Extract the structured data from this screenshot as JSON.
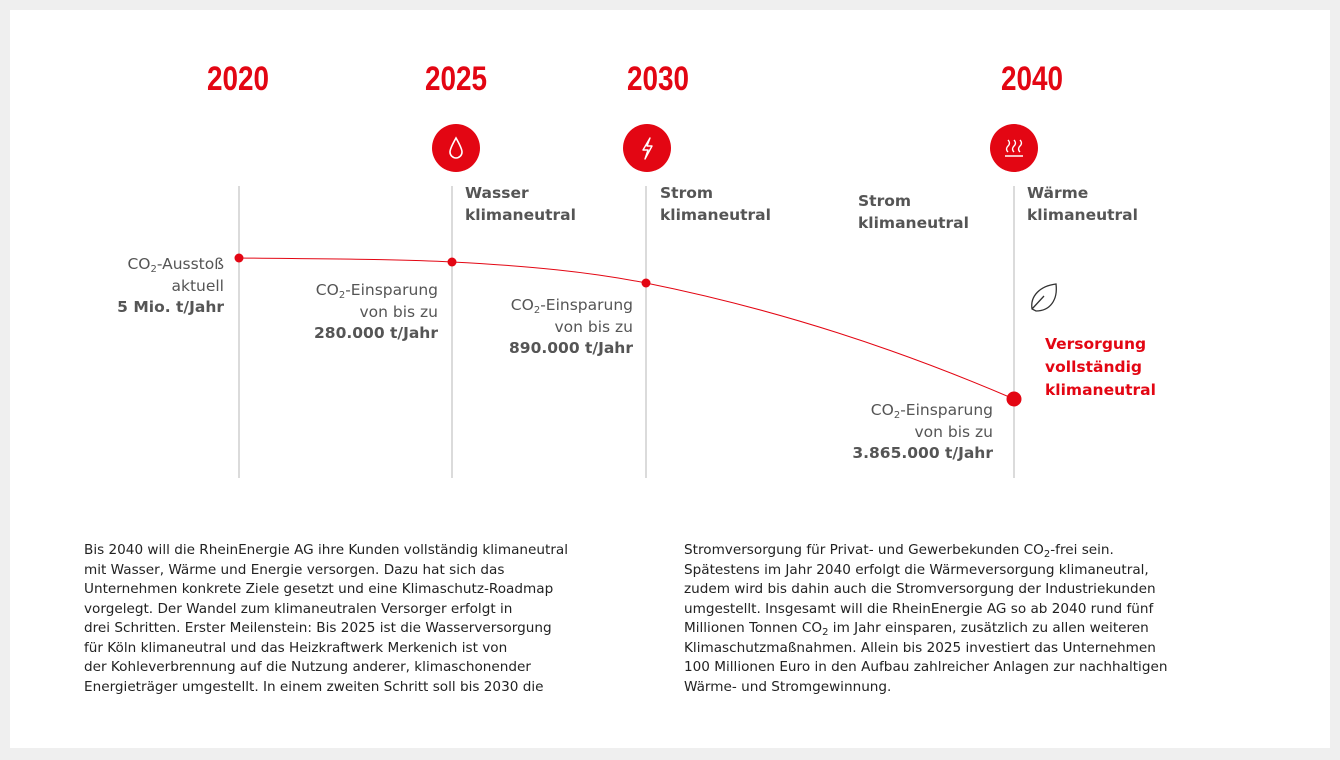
{
  "years": [
    "2020",
    "2025",
    "2030",
    "2040"
  ],
  "milestones": [
    [
      "Wasser",
      "klimaneutral"
    ],
    [
      "Strom",
      "klimaneutral"
    ],
    [
      "Strom",
      "klimaneutral"
    ],
    [
      "Wärme",
      "klimaneutral"
    ]
  ],
  "emissions": [
    {
      "label": {
        "pre": "CO",
        "sub": "2",
        "post": "-Ausstoß"
      },
      "qualifier": "aktuell",
      "amount": "5 Mio. t/Jahr"
    },
    {
      "label": {
        "pre": "CO",
        "sub": "2",
        "post": "-Einsparung"
      },
      "qualifier": "von bis zu",
      "amount": "280.000 t/Jahr"
    },
    {
      "label": {
        "pre": "CO",
        "sub": "2",
        "post": "-Einsparung"
      },
      "qualifier": "von bis zu",
      "amount": "890.000 t/Jahr"
    },
    {
      "label": {
        "pre": "CO",
        "sub": "2",
        "post": "-Einsparung"
      },
      "qualifier": "von bis zu",
      "amount": "3.865.000 t/Jahr"
    }
  ],
  "goal": [
    "Versorgung",
    "vollständig",
    "klimaneutral"
  ],
  "body": {
    "left": [
      [
        {
          "text": "Bis 2040 will die RheinEnergie AG ihre Kunden vollständig klimaneutral"
        }
      ],
      [
        {
          "text": "mit Wasser, Wärme und Energie versorgen. Dazu hat sich das"
        }
      ],
      [
        {
          "text": "Unternehmen konkrete Ziele gesetzt und eine Klimaschutz-Roadmap"
        }
      ],
      [
        {
          "text": "vorgelegt. Der Wandel zum klimaneutralen Versorger erfolgt in"
        }
      ],
      [
        {
          "text": "drei Schritten. Erster Meilenstein: Bis 2025 ist die Wasserversorgung"
        }
      ],
      [
        {
          "text": "für Köln klimaneutral und das Heizkraftwerk Merkenich ist von"
        }
      ],
      [
        {
          "text": "der Kohleverbrennung auf die Nutzung anderer, klimaschonender"
        }
      ],
      [
        {
          "text": "Energieträger umgestellt. In einem zweiten Schritt soll bis 2030 die"
        }
      ]
    ],
    "right": [
      [
        {
          "text": "Stromversorgung für Privat- und Gewerbekunden CO"
        },
        {
          "sub": "2"
        },
        {
          "text": "-frei sein."
        }
      ],
      [
        {
          "text": "Spätestens im Jahr 2040 erfolgt die Wärmeversorgung klimaneutral,"
        }
      ],
      [
        {
          "text": "zudem wird bis dahin auch die Stromversorgung der Industriekunden"
        }
      ],
      [
        {
          "text": "umgestellt. Insgesamt will die RheinEnergie AG so ab 2040 rund fünf"
        }
      ],
      [
        {
          "text": "Millionen Tonnen CO"
        },
        {
          "sub": "2"
        },
        {
          "text": " im Jahr einsparen, zusätzlich zu allen weiteren"
        }
      ],
      [
        {
          "text": "Klimaschutzmaßnahmen. Allein bis 2025 investiert das Unternehmen"
        }
      ],
      [
        {
          "text": "100 Millionen Euro in den Aufbau zahlreicher Anlagen zur nachhaltigen"
        }
      ],
      [
        {
          "text": "Wärme- und Stromgewinnung."
        }
      ]
    ]
  }
}
